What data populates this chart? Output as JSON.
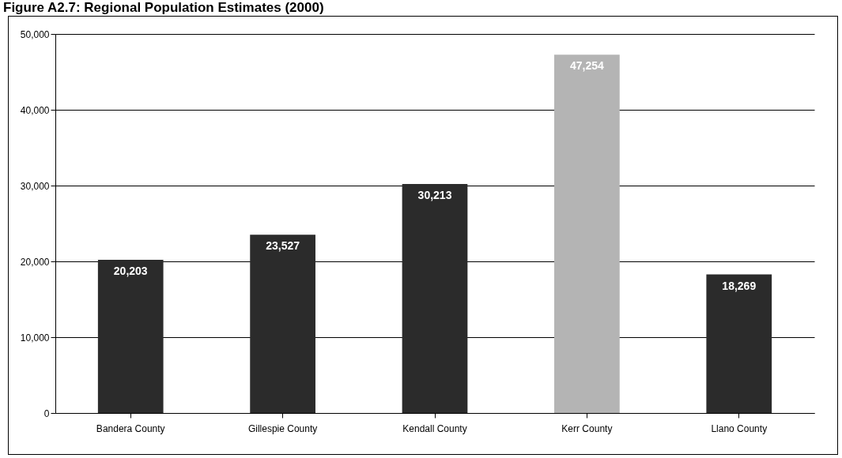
{
  "chart_data": {
    "type": "bar",
    "title": "Figure A2.7: Regional Population Estimates (2000)",
    "categories": [
      "Bandera County",
      "Gillespie County",
      "Kendall County",
      "Kerr County",
      "Llano County"
    ],
    "values": [
      20203,
      23527,
      30213,
      47254,
      18269
    ],
    "colors": [
      "#2b2b2b",
      "#2b2b2b",
      "#2b2b2b",
      "#b4b4b4",
      "#2b2b2b"
    ],
    "ylim": [
      0,
      50000
    ],
    "yticks": [
      {
        "value": 0,
        "label": "0"
      },
      {
        "value": 10000,
        "label": "10,000"
      },
      {
        "value": 20000,
        "label": "20,000"
      },
      {
        "value": 30000,
        "label": "30,000"
      },
      {
        "value": 40000,
        "label": "40,000"
      },
      {
        "value": 50000,
        "label": "50,000"
      }
    ],
    "value_labels": [
      "20,203",
      "23,527",
      "30,213",
      "47,254",
      "18,269"
    ],
    "grid": "y"
  }
}
